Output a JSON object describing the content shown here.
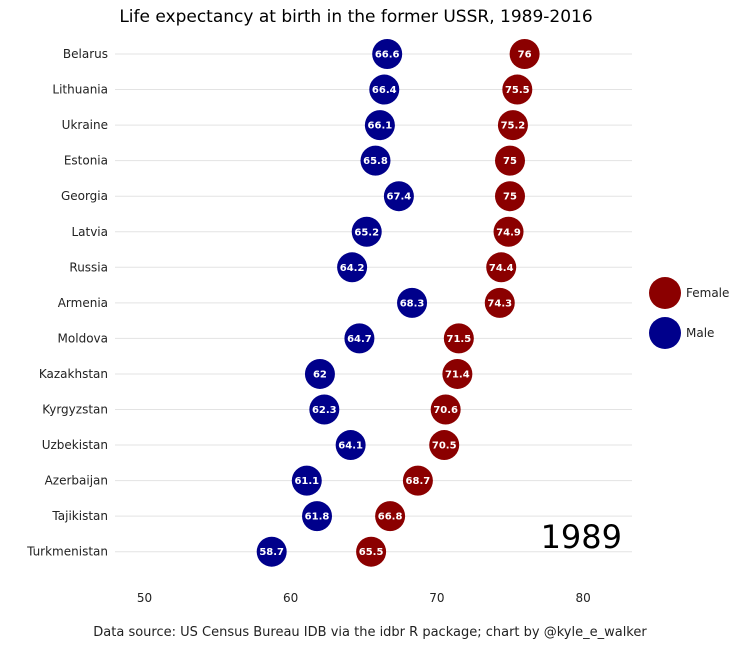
{
  "chart_data": {
    "type": "scatter",
    "title": "Life expectancy at birth in the former USSR, 1989-2016",
    "caption": "Data source: US Census Bureau IDB via the idbr R package; chart by @kyle_e_walker",
    "year_label": "1989",
    "xlim": [
      48,
      83
    ],
    "x_ticks": [
      50,
      60,
      70,
      80
    ],
    "x_tick_labels": [
      "50",
      "60",
      "70",
      "80"
    ],
    "grid": true,
    "legend_position": "right",
    "categories": [
      "Belarus",
      "Lithuania",
      "Ukraine",
      "Estonia",
      "Georgia",
      "Latvia",
      "Russia",
      "Armenia",
      "Moldova",
      "Kazakhstan",
      "Kyrgyzstan",
      "Uzbekistan",
      "Azerbaijan",
      "Tajikistan",
      "Turkmenistan"
    ],
    "series": [
      {
        "name": "Female",
        "color": "#8b0000",
        "values": [
          76,
          75.5,
          75.2,
          75,
          75,
          74.9,
          74.4,
          74.3,
          71.5,
          71.4,
          70.6,
          70.5,
          68.7,
          66.8,
          65.5
        ],
        "labels": [
          "76",
          "75.5",
          "75.2",
          "75",
          "75",
          "74.9",
          "74.4",
          "74.3",
          "71.5",
          "71.4",
          "70.6",
          "70.5",
          "68.7",
          "66.8",
          "65.5"
        ]
      },
      {
        "name": "Male",
        "color": "#00008b",
        "values": [
          66.6,
          66.4,
          66.1,
          65.8,
          67.4,
          65.2,
          64.2,
          68.3,
          64.7,
          62,
          62.3,
          64.1,
          61.1,
          61.8,
          58.7
        ],
        "labels": [
          "66.6",
          "66.4",
          "66.1",
          "65.8",
          "67.4",
          "65.2",
          "64.2",
          "68.3",
          "64.7",
          "62",
          "62.3",
          "64.1",
          "61.1",
          "61.8",
          "58.7"
        ]
      }
    ]
  }
}
